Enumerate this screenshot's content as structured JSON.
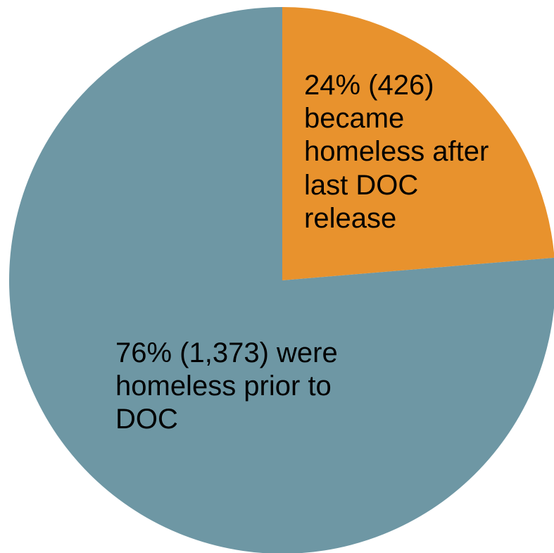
{
  "chart_data": {
    "type": "pie",
    "title": "",
    "start_angle_deg": 0,
    "direction": "clockwise",
    "slices": [
      {
        "percent": 24,
        "count": 426,
        "value": 426,
        "color": "#e8922d",
        "label_lines": [
          "24% (426)",
          "became",
          "homeless after",
          "last DOC",
          "release"
        ]
      },
      {
        "percent": 76,
        "count": 1373,
        "value": 1373,
        "color": "#6e97a4",
        "label_lines": [
          "76% (1,373) were",
          "homeless prior to",
          "DOC"
        ]
      }
    ]
  }
}
